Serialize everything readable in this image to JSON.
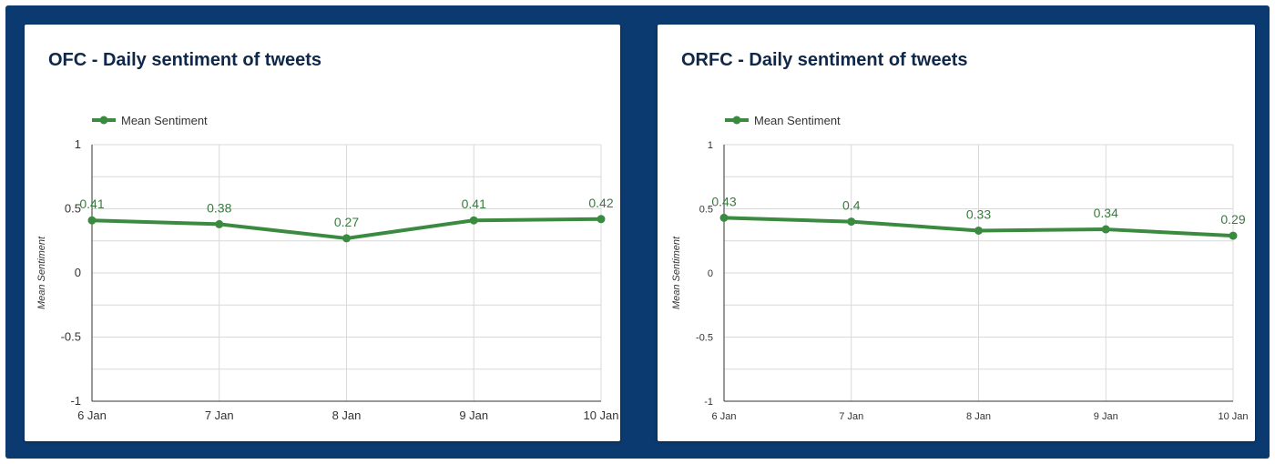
{
  "colors": {
    "frame": "#0b3a70",
    "line": "#3a8a3f",
    "label": "#3a7a3f",
    "grid": "#d9d9d9",
    "axis": "#333333",
    "title": "#0f2748"
  },
  "chart_data": [
    {
      "type": "line",
      "title": "OFC - Daily sentiment of tweets",
      "x": [
        "6 Jan",
        "7 Jan",
        "8 Jan",
        "9 Jan",
        "10 Jan"
      ],
      "series": [
        {
          "name": "Mean Sentiment",
          "values": [
            0.41,
            0.38,
            0.27,
            0.41,
            0.42
          ],
          "labels": [
            "0.41",
            "0.38",
            "0.27",
            "0.41",
            "0.42"
          ]
        }
      ],
      "xlabel": "",
      "ylabel": "Mean Sentiment",
      "ylim": [
        -1,
        1
      ],
      "yticks": [
        "1",
        "0.5",
        "0",
        "-0.5",
        "-1"
      ],
      "legend": "top-left",
      "grid": true
    },
    {
      "type": "line",
      "title": "ORFC - Daily sentiment of tweets",
      "x": [
        "6 Jan",
        "7 Jan",
        "8 Jan",
        "9 Jan",
        "10 Jan"
      ],
      "series": [
        {
          "name": "Mean Sentiment",
          "values": [
            0.43,
            0.4,
            0.33,
            0.34,
            0.29
          ],
          "labels": [
            "0.43",
            "0.4",
            "0.33",
            "0.34",
            "0.29"
          ]
        }
      ],
      "xlabel": "",
      "ylabel": "Mean Sentiment",
      "ylim": [
        -1,
        1
      ],
      "yticks": [
        "1",
        "0.5",
        "0",
        "-0.5",
        "-1"
      ],
      "legend": "top-left",
      "grid": true
    }
  ]
}
